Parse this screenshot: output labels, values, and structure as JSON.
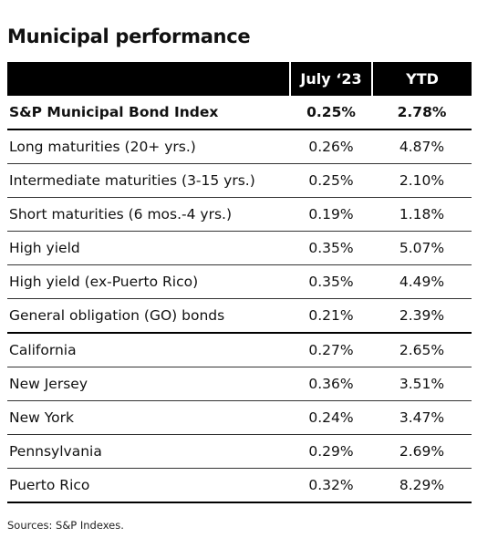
{
  "header": {
    "title": "Municipal performance"
  },
  "table": {
    "columns": [
      "July ‘23",
      "YTD"
    ],
    "rows": [
      [
        "S&P Municipal Bond Index",
        "0.25%",
        "2.78%"
      ],
      [
        "Long maturities (20+ yrs.)",
        "0.26%",
        "4.87%"
      ],
      [
        "Intermediate maturities (3-15 yrs.)",
        "0.25%",
        "2.10%"
      ],
      [
        "Short maturities (6 mos.-4 yrs.)",
        "0.19%",
        "1.18%"
      ],
      [
        "High yield",
        "0.35%",
        "5.07%"
      ],
      [
        "High yield (ex-Puerto Rico)",
        "0.35%",
        "4.49%"
      ],
      [
        "General obligation (GO) bonds",
        "0.21%",
        "2.39%"
      ],
      [
        "California",
        "0.27%",
        "2.65%"
      ],
      [
        "New Jersey",
        "0.36%",
        "3.51%"
      ],
      [
        "New York",
        "0.24%",
        "3.47%"
      ],
      [
        "Pennsylvania",
        "0.29%",
        "2.69%"
      ],
      [
        "Puerto Rico",
        "0.32%",
        "8.29%"
      ]
    ]
  },
  "footer": {
    "source": "Sources: S&P Indexes."
  }
}
